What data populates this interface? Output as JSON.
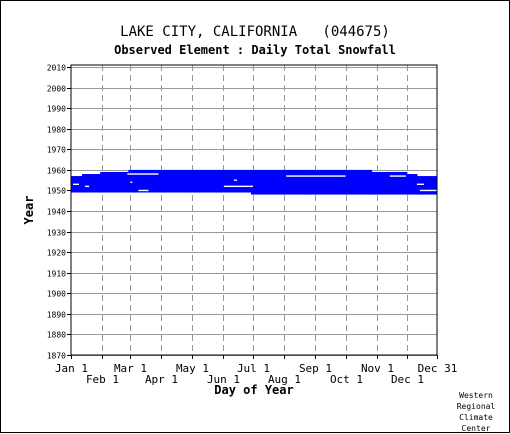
{
  "chart_data": {
    "type": "bar",
    "title": "LAKE CITY, CALIFORNIA   (044675)",
    "subtitle": "Observed Element : Daily Total Snowfall",
    "xlabel": "Day of Year",
    "ylabel": "Year",
    "ylim": [
      1870,
      2011
    ],
    "xlim": [
      1,
      365
    ],
    "y_ticks": [
      2010,
      2000,
      1990,
      1980,
      1970,
      1960,
      1950,
      1940,
      1930,
      1920,
      1910,
      1900,
      1890,
      1880,
      1870
    ],
    "x_ticks_row1": [
      {
        "label": "Jan 1",
        "day": 1
      },
      {
        "label": "Mar 1",
        "day": 60
      },
      {
        "label": "May 1",
        "day": 121
      },
      {
        "label": "Jul 1",
        "day": 182
      },
      {
        "label": "Sep 1",
        "day": 244
      },
      {
        "label": "Nov 1",
        "day": 305
      },
      {
        "label": "Dec 31",
        "day": 365
      }
    ],
    "x_ticks_row2": [
      {
        "label": "Feb 1",
        "day": 32
      },
      {
        "label": "Apr 1",
        "day": 91
      },
      {
        "label": "Jun 1",
        "day": 152
      },
      {
        "label": "Aug 1",
        "day": 213
      },
      {
        "label": "Oct 1",
        "day": 274
      },
      {
        "label": "Dec 1",
        "day": 335
      }
    ],
    "grid": true,
    "series_color": "#0000ff",
    "coverage": [
      {
        "day_start": 1,
        "day_end": 12,
        "year_start": 1949,
        "year_end": 1957
      },
      {
        "day_start": 12,
        "day_end": 30,
        "year_start": 1949,
        "year_end": 1958
      },
      {
        "day_start": 30,
        "day_end": 58,
        "year_start": 1949,
        "year_end": 1959
      },
      {
        "day_start": 58,
        "day_end": 120,
        "year_start": 1949,
        "year_end": 1960
      },
      {
        "day_start": 120,
        "day_end": 180,
        "year_start": 1949,
        "year_end": 1960
      },
      {
        "day_start": 180,
        "day_end": 240,
        "year_start": 1948,
        "year_end": 1960
      },
      {
        "day_start": 240,
        "day_end": 300,
        "year_start": 1948,
        "year_end": 1960
      },
      {
        "day_start": 300,
        "day_end": 335,
        "year_start": 1948,
        "year_end": 1959
      },
      {
        "day_start": 335,
        "day_end": 345,
        "year_start": 1948,
        "year_end": 1958
      },
      {
        "day_start": 345,
        "day_end": 365,
        "year_start": 1948,
        "year_end": 1957
      }
    ],
    "gaps": [
      {
        "day_start": 3,
        "day_end": 9,
        "year": 1953
      },
      {
        "day_start": 15,
        "day_end": 19,
        "year": 1952
      },
      {
        "day_start": 57,
        "day_end": 88,
        "year": 1958
      },
      {
        "day_start": 60,
        "day_end": 62,
        "year": 1954
      },
      {
        "day_start": 68,
        "day_end": 78,
        "year": 1950
      },
      {
        "day_start": 153,
        "day_end": 182,
        "year": 1952
      },
      {
        "day_start": 163,
        "day_end": 166,
        "year": 1955
      },
      {
        "day_start": 215,
        "day_end": 274,
        "year": 1957
      },
      {
        "day_start": 318,
        "day_end": 334,
        "year": 1957
      },
      {
        "day_start": 345,
        "day_end": 352,
        "year": 1953
      },
      {
        "day_start": 348,
        "day_end": 365,
        "year": 1950
      }
    ]
  },
  "credit": [
    "Western",
    "Regional",
    "Climate",
    "Center"
  ]
}
